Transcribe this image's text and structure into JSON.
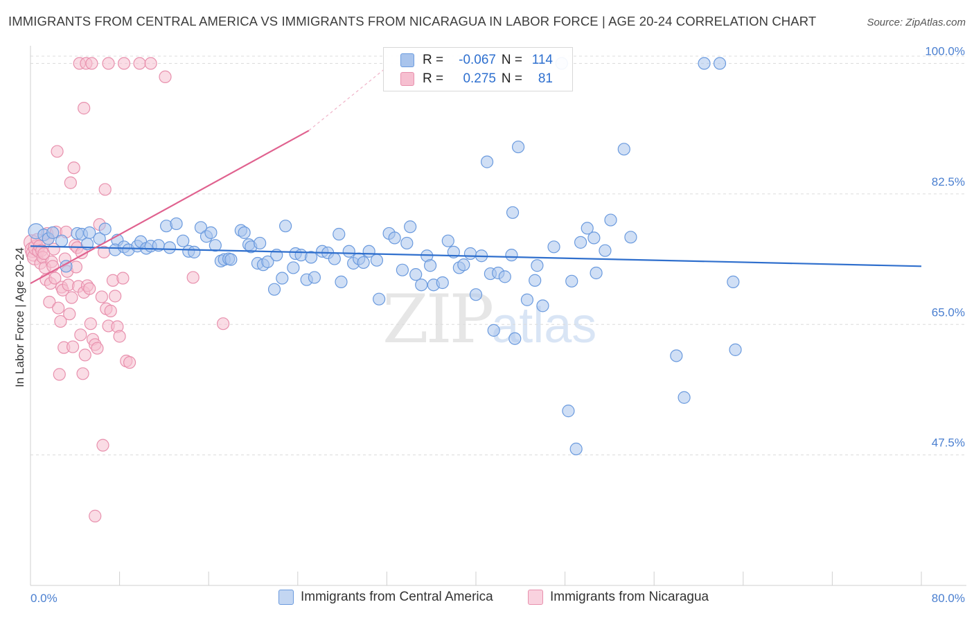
{
  "title": "IMMIGRANTS FROM CENTRAL AMERICA VS IMMIGRANTS FROM NICARAGUA IN LABOR FORCE | AGE 20-24 CORRELATION CHART",
  "source": "Source: ZipAtlas.com",
  "watermark": {
    "zip": "ZIP",
    "atlas": "atlas"
  },
  "legend": {
    "rows": [
      {
        "r_label": "R =",
        "r_value": "-0.067",
        "n_label": "N =",
        "n_value": "114"
      },
      {
        "r_label": "R =",
        "r_value": "0.275",
        "n_label": "N =",
        "n_value": "81"
      }
    ]
  },
  "bottom_legend": [
    "Immigrants from Central America",
    "Immigrants from Nicaragua"
  ],
  "chart_data": {
    "type": "scatter",
    "title": "IMMIGRANTS FROM CENTRAL AMERICA VS IMMIGRANTS FROM NICARAGUA IN LABOR FORCE | AGE 20-24 CORRELATION CHART",
    "xlabel": "",
    "ylabel": "In Labor Force | Age 20-24",
    "xlim": [
      0,
      80
    ],
    "ylim": [
      30,
      102
    ],
    "x_tick_labels": [
      "0.0%",
      "80.0%"
    ],
    "y_ticks": [
      47.5,
      65.0,
      82.5,
      100.0
    ],
    "y_tick_labels": [
      "47.5%",
      "65.0%",
      "82.5%",
      "100.0%"
    ],
    "grid": "horizontal dashed",
    "legend_position": "top-center",
    "colors": {
      "blue_fill": "#a9c4ec",
      "blue_stroke": "#6a9ade",
      "blue_line": "#2f6fcd",
      "pink_fill": "#f6bfd0",
      "pink_stroke": "#e890ad",
      "pink_line": "#e0628f"
    },
    "series": [
      {
        "name": "Immigrants from Central America",
        "color": "#6a9ade",
        "r": -0.067,
        "n": 114,
        "trend": {
          "x": [
            0,
            80
          ],
          "y": [
            75.5,
            72.8
          ]
        },
        "points": [
          [
            0.5,
            77.5
          ],
          [
            1.2,
            77
          ],
          [
            1.6,
            76.5
          ],
          [
            2.0,
            77.3
          ],
          [
            2.8,
            76.2
          ],
          [
            3.2,
            72.8
          ],
          [
            4.2,
            77.2
          ],
          [
            4.6,
            77.1
          ],
          [
            5.3,
            77.3
          ],
          [
            5.1,
            75.8
          ],
          [
            6.2,
            76.5
          ],
          [
            6.7,
            77.8
          ],
          [
            7.8,
            76.3
          ],
          [
            7.6,
            75.0
          ],
          [
            8.4,
            75.4
          ],
          [
            8.8,
            75.0
          ],
          [
            9.6,
            75.5
          ],
          [
            9.9,
            76.1
          ],
          [
            10.4,
            75.2
          ],
          [
            10.8,
            75.5
          ],
          [
            11.5,
            75.6
          ],
          [
            12.2,
            78.2
          ],
          [
            12.5,
            75.3
          ],
          [
            13.1,
            78.5
          ],
          [
            13.7,
            76.2
          ],
          [
            14.2,
            74.8
          ],
          [
            14.7,
            74.7
          ],
          [
            15.3,
            78.0
          ],
          [
            15.8,
            76.8
          ],
          [
            16.2,
            77.3
          ],
          [
            16.6,
            75.6
          ],
          [
            17.1,
            73.5
          ],
          [
            17.4,
            73.7
          ],
          [
            17.8,
            73.8
          ],
          [
            18.0,
            73.7
          ],
          [
            18.9,
            77.6
          ],
          [
            19.2,
            77.3
          ],
          [
            19.6,
            75.7
          ],
          [
            19.8,
            75.4
          ],
          [
            20.6,
            75.9
          ],
          [
            20.4,
            73.2
          ],
          [
            20.9,
            73.0
          ],
          [
            21.3,
            73.4
          ],
          [
            22.1,
            74.3
          ],
          [
            21.9,
            69.7
          ],
          [
            22.6,
            71.2
          ],
          [
            22.9,
            78.2
          ],
          [
            23.8,
            74.5
          ],
          [
            23.6,
            72.6
          ],
          [
            24.3,
            74.3
          ],
          [
            24.8,
            71.0
          ],
          [
            25.2,
            74.0
          ],
          [
            25.5,
            71.3
          ],
          [
            26.2,
            74.8
          ],
          [
            26.7,
            74.6
          ],
          [
            27.3,
            73.8
          ],
          [
            27.9,
            70.7
          ],
          [
            27.7,
            77.1
          ],
          [
            28.6,
            74.8
          ],
          [
            29.0,
            73.2
          ],
          [
            29.5,
            73.8
          ],
          [
            29.9,
            73.3
          ],
          [
            30.4,
            74.8
          ],
          [
            31.1,
            73.6
          ],
          [
            31.3,
            68.4
          ],
          [
            32.2,
            77.2
          ],
          [
            32.7,
            76.6
          ],
          [
            33.4,
            72.3
          ],
          [
            33.8,
            75.9
          ],
          [
            34.1,
            78.1
          ],
          [
            34.6,
            71.7
          ],
          [
            35.1,
            70.3
          ],
          [
            35.6,
            74.2
          ],
          [
            35.9,
            72.9
          ],
          [
            36.2,
            70.3
          ],
          [
            37.0,
            70.6
          ],
          [
            37.5,
            76.2
          ],
          [
            38.0,
            74.7
          ],
          [
            38.5,
            72.6
          ],
          [
            38.9,
            73.0
          ],
          [
            39.5,
            74.5
          ],
          [
            40.0,
            69.0
          ],
          [
            40.5,
            74.2
          ],
          [
            41.3,
            71.8
          ],
          [
            41.6,
            64.2
          ],
          [
            42.0,
            71.9
          ],
          [
            42.6,
            71.4
          ],
          [
            43.2,
            74.3
          ],
          [
            43.5,
            63.1
          ],
          [
            43.8,
            88.8
          ],
          [
            43.3,
            80.0
          ],
          [
            44.6,
            68.3
          ],
          [
            45.3,
            70.9
          ],
          [
            45.5,
            72.9
          ],
          [
            46.0,
            67.5
          ],
          [
            47.0,
            75.4
          ],
          [
            48.3,
            53.4
          ],
          [
            48.6,
            70.8
          ],
          [
            49.4,
            76.0
          ],
          [
            50.0,
            77.9
          ],
          [
            50.6,
            76.6
          ],
          [
            50.8,
            71.9
          ],
          [
            51.6,
            74.9
          ],
          [
            52.1,
            79.0
          ],
          [
            53.3,
            88.5
          ],
          [
            53.9,
            76.7
          ],
          [
            58.0,
            60.8
          ],
          [
            58.7,
            55.2
          ],
          [
            60.5,
            100
          ],
          [
            61.9,
            100
          ],
          [
            63.1,
            70.7
          ],
          [
            63.3,
            61.6
          ],
          [
            49.0,
            48.3
          ],
          [
            47.7,
            100
          ],
          [
            41.0,
            86.8
          ]
        ]
      },
      {
        "name": "Immigrants from Nicaragua",
        "color": "#e890ad",
        "r": 0.275,
        "n": 81,
        "trend": {
          "x": [
            0,
            25
          ],
          "y": [
            70.5,
            91.0
          ]
        },
        "trend_extension": {
          "x": [
            25,
            32
          ],
          "y": [
            91.0,
            99.5
          ]
        },
        "points": [
          [
            0.1,
            76.0
          ],
          [
            0.2,
            75.0
          ],
          [
            0.3,
            74.5
          ],
          [
            0.4,
            74.0
          ],
          [
            0.5,
            75.3
          ],
          [
            0.6,
            76.4
          ],
          [
            0.7,
            74.8
          ],
          [
            0.8,
            75.5
          ],
          [
            0.9,
            73.2
          ],
          [
            1.0,
            74.9
          ],
          [
            1.1,
            74.0
          ],
          [
            1.2,
            74.5
          ],
          [
            1.3,
            72.6
          ],
          [
            1.4,
            71.0
          ],
          [
            1.5,
            77.2
          ],
          [
            1.6,
            76.5
          ],
          [
            1.7,
            68.0
          ],
          [
            1.8,
            70.5
          ],
          [
            1.9,
            73.4
          ],
          [
            2.0,
            72.8
          ],
          [
            2.1,
            75.1
          ],
          [
            2.2,
            71.2
          ],
          [
            2.3,
            77.4
          ],
          [
            2.4,
            88.2
          ],
          [
            2.5,
            67.2
          ],
          [
            2.6,
            58.3
          ],
          [
            2.7,
            65.4
          ],
          [
            2.8,
            70.0
          ],
          [
            2.9,
            69.6
          ],
          [
            3.0,
            61.9
          ],
          [
            3.1,
            73.8
          ],
          [
            3.2,
            77.4
          ],
          [
            3.3,
            72.1
          ],
          [
            3.4,
            70.3
          ],
          [
            3.5,
            66.4
          ],
          [
            3.6,
            84.0
          ],
          [
            3.7,
            68.6
          ],
          [
            3.8,
            62.0
          ],
          [
            3.9,
            86.0
          ],
          [
            4.0,
            75.6
          ],
          [
            4.1,
            72.7
          ],
          [
            4.2,
            75.3
          ],
          [
            4.3,
            70.1
          ],
          [
            4.5,
            63.6
          ],
          [
            4.6,
            74.6
          ],
          [
            4.7,
            58.4
          ],
          [
            4.8,
            69.3
          ],
          [
            4.9,
            60.9
          ],
          [
            5.1,
            70.2
          ],
          [
            5.3,
            69.8
          ],
          [
            5.4,
            65.1
          ],
          [
            5.6,
            63.0
          ],
          [
            5.8,
            62.3
          ],
          [
            6.0,
            61.8
          ],
          [
            6.2,
            78.4
          ],
          [
            6.4,
            68.7
          ],
          [
            6.6,
            74.7
          ],
          [
            6.8,
            67.1
          ],
          [
            7.0,
            64.8
          ],
          [
            7.2,
            66.8
          ],
          [
            7.4,
            70.9
          ],
          [
            7.6,
            68.8
          ],
          [
            7.8,
            64.7
          ],
          [
            8.0,
            63.4
          ],
          [
            8.3,
            71.2
          ],
          [
            8.6,
            60.1
          ],
          [
            8.9,
            59.9
          ],
          [
            6.5,
            48.8
          ],
          [
            5.8,
            39.3
          ],
          [
            6.7,
            83.1
          ],
          [
            4.8,
            94.0
          ],
          [
            4.4,
            100
          ],
          [
            5.0,
            100
          ],
          [
            5.5,
            100
          ],
          [
            7.0,
            100
          ],
          [
            8.4,
            100
          ],
          [
            9.8,
            100
          ],
          [
            10.8,
            100
          ],
          [
            12.1,
            98.2
          ],
          [
            14.6,
            71.3
          ],
          [
            17.3,
            65.1
          ]
        ]
      }
    ]
  }
}
